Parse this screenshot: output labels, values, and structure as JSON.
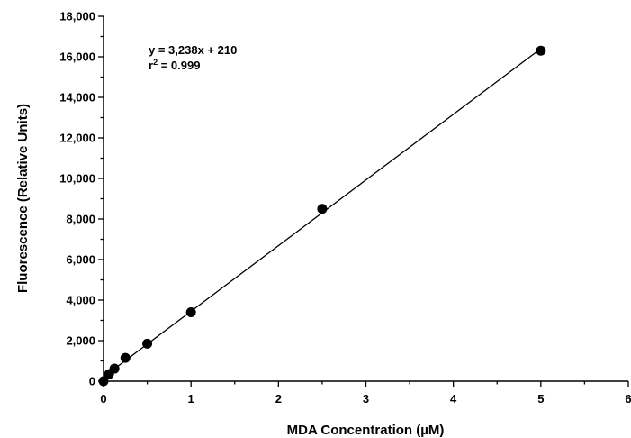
{
  "chart_data": {
    "type": "scatter",
    "title": "",
    "xlabel": "MDA Concentration (µM)",
    "ylabel": "Fluorescence (Relative Units)",
    "xlim": [
      0,
      6
    ],
    "ylim": [
      0,
      18000
    ],
    "x_ticks": [
      0,
      1,
      2,
      3,
      4,
      5,
      6
    ],
    "x_tick_labels": [
      "0",
      "1",
      "2",
      "3",
      "4",
      "5",
      "6"
    ],
    "y_ticks": [
      0,
      2000,
      4000,
      6000,
      8000,
      10000,
      12000,
      14000,
      16000,
      18000
    ],
    "y_tick_labels": [
      "0",
      "2,000",
      "4,000",
      "6,000",
      "8,000",
      "10,000",
      "12,000",
      "14,000",
      "16,000",
      "18,000"
    ],
    "grid": false,
    "legend": "none",
    "series": [
      {
        "x": [
          0,
          0.0625,
          0.125,
          0.25,
          0.5,
          1,
          2.5,
          5
        ],
        "y": [
          0,
          350,
          620,
          1150,
          1850,
          3400,
          8500,
          16300
        ]
      }
    ],
    "fit_line": {
      "slope": 3238,
      "intercept": 210,
      "x_range": [
        0,
        5
      ]
    },
    "annotations": {
      "equation_prefix": "y = 3,238x + 210",
      "r2_base": "r",
      "r2_sup": "2",
      "r2_value": " = 0.999"
    }
  }
}
